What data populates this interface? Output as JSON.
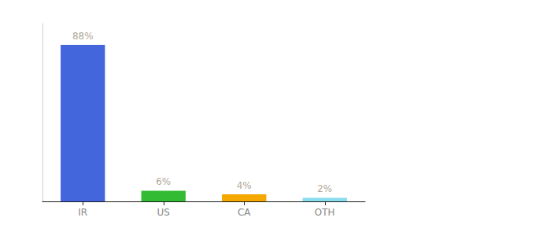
{
  "chart_data": {
    "type": "bar",
    "categories": [
      "IR",
      "US",
      "CA",
      "OTH"
    ],
    "values": [
      88,
      6,
      4,
      2
    ],
    "value_labels": [
      "88%",
      "6%",
      "4%",
      "2%"
    ],
    "colors": [
      "#4466dd",
      "#33bb33",
      "#f5a800",
      "#88ddee"
    ],
    "ylim": [
      0,
      100
    ],
    "grid": false,
    "data_labels": true,
    "tick_labels": "x"
  }
}
